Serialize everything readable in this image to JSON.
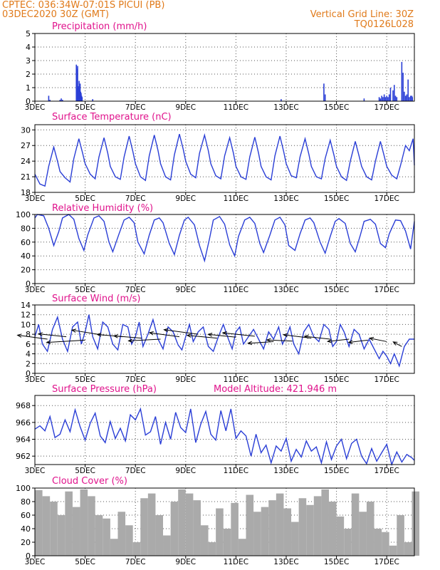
{
  "header": {
    "line1_left": "CPTEC:   036:34W-07:01S   PICUI (PB)",
    "line2_left": "03DEC2020 30Z (GMT)",
    "line1_right": "Vertical Grid Line: 30Z",
    "line2_right": "TQ0126L028",
    "text_color": "#e07a1a"
  },
  "colors": {
    "title": "#e0138c",
    "line": "#2a3ed6",
    "bar": "#2a3ed6",
    "cloud": "#aaaaaa",
    "axis": "#000000",
    "grid": "#555555"
  },
  "x_ticks": [
    "3DEC",
    "5DEC",
    "7DEC",
    "9DEC",
    "11DEC",
    "13DEC",
    "15DEC",
    "17DEC"
  ],
  "x_range_days": [
    3,
    18.1
  ],
  "chart_data": [
    {
      "id": "precip",
      "type": "bar",
      "title": "Precipitation (mm/h)",
      "ylim": [
        0,
        5
      ],
      "yticks": [
        0,
        1,
        2,
        3,
        4,
        5
      ],
      "grid": true,
      "x": [
        3.55,
        3.6,
        4.0,
        4.05,
        4.1,
        4.65,
        4.68,
        4.7,
        4.72,
        4.74,
        4.76,
        4.78,
        4.8,
        4.82,
        4.84,
        4.86,
        4.88,
        5.3,
        12.8,
        14.5,
        14.55,
        16.1,
        16.7,
        16.75,
        16.8,
        16.85,
        16.9,
        16.95,
        17.0,
        17.05,
        17.1,
        17.15,
        17.25,
        17.3,
        17.35,
        17.4,
        17.6,
        17.65,
        17.7,
        17.75,
        17.8,
        17.85,
        17.9,
        17.95,
        18.0,
        18.02
      ],
      "values": [
        0.4,
        0.1,
        0.1,
        0.2,
        0.1,
        2.7,
        2.4,
        2.6,
        1.1,
        1.0,
        1.5,
        0.8,
        1.3,
        0.7,
        0.6,
        0.4,
        0.3,
        0.15,
        0.15,
        1.3,
        0.5,
        0.2,
        0.3,
        0.2,
        0.4,
        0.3,
        0.5,
        0.3,
        0.4,
        0.3,
        0.5,
        1.0,
        0.8,
        1.2,
        0.4,
        0.3,
        2.9,
        2.1,
        0.7,
        0.4,
        0.5,
        1.6,
        0.3,
        0.4,
        0.4,
        0.3
      ]
    },
    {
      "id": "temp",
      "type": "line",
      "title": "Surface Temperature (nC)",
      "ylim": [
        18,
        31
      ],
      "yticks": [
        18,
        21,
        24,
        27,
        30
      ],
      "grid": true,
      "x": [
        3.0,
        3.2,
        3.4,
        3.55,
        3.75,
        3.9,
        4.0,
        4.2,
        4.4,
        4.55,
        4.75,
        4.9,
        5.0,
        5.2,
        5.4,
        5.55,
        5.75,
        5.9,
        6.0,
        6.2,
        6.4,
        6.55,
        6.75,
        6.9,
        7.0,
        7.2,
        7.4,
        7.55,
        7.75,
        7.9,
        8.0,
        8.2,
        8.4,
        8.55,
        8.75,
        8.9,
        9.0,
        9.2,
        9.4,
        9.55,
        9.75,
        9.9,
        10.0,
        10.2,
        10.4,
        10.55,
        10.75,
        10.9,
        11.0,
        11.2,
        11.4,
        11.55,
        11.75,
        11.9,
        12.0,
        12.2,
        12.4,
        12.55,
        12.75,
        12.9,
        13.0,
        13.2,
        13.4,
        13.55,
        13.75,
        13.9,
        14.0,
        14.2,
        14.4,
        14.55,
        14.75,
        14.9,
        15.0,
        15.2,
        15.4,
        15.55,
        15.75,
        15.9,
        16.0,
        16.2,
        16.4,
        16.55,
        16.75,
        16.9,
        17.0,
        17.2,
        17.4,
        17.55,
        17.75,
        17.9,
        18.05,
        18.1
      ],
      "values": [
        21.5,
        19.6,
        19.2,
        23.0,
        26.7,
        24.0,
        22.0,
        20.8,
        20.0,
        24.5,
        28.3,
        25.5,
        23.5,
        21.5,
        20.6,
        24.8,
        28.5,
        25.5,
        23.0,
        21.0,
        20.5,
        24.8,
        28.8,
        25.8,
        23.5,
        21.0,
        20.3,
        25.0,
        29.0,
        26.0,
        23.5,
        21.0,
        20.4,
        25.2,
        29.2,
        26.3,
        24.0,
        21.5,
        20.8,
        25.5,
        29.0,
        26.0,
        23.5,
        21.2,
        20.6,
        25.0,
        28.5,
        25.5,
        23.0,
        21.0,
        20.5,
        24.8,
        28.6,
        25.5,
        23.0,
        21.0,
        20.4,
        25.0,
        28.8,
        25.8,
        23.5,
        21.2,
        20.8,
        24.8,
        28.3,
        25.4,
        23.0,
        21.0,
        20.6,
        24.5,
        28.0,
        25.2,
        23.0,
        21.0,
        20.3,
        24.0,
        27.8,
        25.0,
        23.0,
        21.0,
        20.4,
        24.0,
        27.8,
        25.0,
        23.0,
        21.3,
        20.6,
        23.2,
        27.0,
        26.0,
        28.3,
        23.2
      ]
    },
    {
      "id": "rh",
      "type": "line",
      "title": "Relative Humidity (%)",
      "ylim": [
        0,
        100
      ],
      "yticks": [
        0,
        20,
        40,
        60,
        80,
        100
      ],
      "grid": true,
      "x": [
        3.0,
        3.1,
        3.35,
        3.55,
        3.75,
        3.95,
        4.1,
        4.35,
        4.55,
        4.75,
        4.95,
        5.1,
        5.35,
        5.55,
        5.75,
        5.95,
        6.1,
        6.35,
        6.55,
        6.75,
        6.95,
        7.1,
        7.35,
        7.55,
        7.75,
        7.95,
        8.1,
        8.35,
        8.55,
        8.75,
        8.95,
        9.1,
        9.35,
        9.55,
        9.75,
        9.95,
        10.1,
        10.35,
        10.55,
        10.75,
        10.95,
        11.1,
        11.35,
        11.55,
        11.75,
        11.95,
        12.1,
        12.35,
        12.55,
        12.75,
        12.95,
        13.1,
        13.35,
        13.55,
        13.75,
        13.95,
        14.1,
        14.35,
        14.55,
        14.75,
        14.95,
        15.1,
        15.35,
        15.55,
        15.75,
        15.95,
        16.1,
        16.35,
        16.55,
        16.75,
        16.95,
        17.1,
        17.35,
        17.55,
        17.75,
        17.95,
        18.1
      ],
      "values": [
        95,
        100,
        98,
        80,
        55,
        75,
        95,
        100,
        93,
        65,
        48,
        70,
        95,
        98,
        90,
        60,
        46,
        72,
        92,
        96,
        88,
        60,
        43,
        70,
        92,
        95,
        88,
        58,
        42,
        70,
        92,
        96,
        85,
        55,
        33,
        65,
        92,
        97,
        86,
        56,
        40,
        68,
        92,
        96,
        87,
        58,
        45,
        70,
        92,
        96,
        85,
        55,
        48,
        72,
        92,
        95,
        88,
        60,
        44,
        68,
        90,
        94,
        87,
        58,
        46,
        70,
        90,
        93,
        86,
        58,
        52,
        72,
        92,
        91,
        76,
        50,
        90
      ]
    },
    {
      "id": "wind",
      "type": "line",
      "title": "Surface Wind (m/s)",
      "ylim": [
        0,
        14
      ],
      "yticks": [
        0,
        2,
        4,
        6,
        8,
        10,
        12,
        14
      ],
      "grid": true,
      "x": [
        3.0,
        3.15,
        3.3,
        3.5,
        3.7,
        3.9,
        4.1,
        4.3,
        4.5,
        4.7,
        4.85,
        5.0,
        5.15,
        5.3,
        5.5,
        5.7,
        5.9,
        6.1,
        6.3,
        6.5,
        6.7,
        6.85,
        7.0,
        7.15,
        7.3,
        7.5,
        7.7,
        7.9,
        8.1,
        8.3,
        8.5,
        8.7,
        8.85,
        9.0,
        9.15,
        9.3,
        9.5,
        9.7,
        9.9,
        10.1,
        10.3,
        10.5,
        10.7,
        10.85,
        11.0,
        11.15,
        11.3,
        11.5,
        11.7,
        11.9,
        12.1,
        12.3,
        12.5,
        12.7,
        12.85,
        13.0,
        13.15,
        13.3,
        13.5,
        13.7,
        13.9,
        14.1,
        14.3,
        14.5,
        14.7,
        14.85,
        15.0,
        15.15,
        15.3,
        15.5,
        15.7,
        15.9,
        16.1,
        16.3,
        16.5,
        16.7,
        16.85,
        17.0,
        17.15,
        17.3,
        17.5,
        17.7,
        17.9,
        18.1
      ],
      "values": [
        7.5,
        10.0,
        6.0,
        4.5,
        9.0,
        11.5,
        7.0,
        4.5,
        9.5,
        10.5,
        6.0,
        8.5,
        12.0,
        7.5,
        5.0,
        10.5,
        9.5,
        6.0,
        4.8,
        10.0,
        9.5,
        6.0,
        7.5,
        10.5,
        5.5,
        8.0,
        11.0,
        7.0,
        5.0,
        9.5,
        8.5,
        5.8,
        4.8,
        7.5,
        10.0,
        6.5,
        8.5,
        9.5,
        5.5,
        4.5,
        7.5,
        10.0,
        7.0,
        5.0,
        8.5,
        9.5,
        6.0,
        7.5,
        9.0,
        7.0,
        5.0,
        8.5,
        7.0,
        9.5,
        6.0,
        7.5,
        9.5,
        6.0,
        4.0,
        8.5,
        10.0,
        7.5,
        6.5,
        10.0,
        9.0,
        5.5,
        6.5,
        10.0,
        8.5,
        5.5,
        9.0,
        8.0,
        5.0,
        7.0,
        5.0,
        3.0,
        4.5,
        3.5,
        2.0,
        4.0,
        1.5,
        5.5,
        7.0,
        7.0
      ],
      "vectors": {
        "x": [
          3.5,
          4.25,
          5.0,
          5.75,
          6.5,
          7.25,
          8.0,
          8.75,
          9.5,
          10.25,
          11.0,
          11.75,
          12.5,
          13.25,
          14.0,
          14.75,
          15.5,
          16.25,
          17.0,
          17.6
        ],
        "y": [
          7.0,
          7.5,
          6.8,
          7.8,
          7.5,
          7.2,
          7.0,
          7.5,
          8.0,
          7.2,
          7.4,
          7.6,
          6.5,
          6.6,
          7.2,
          7.0,
          7.0,
          6.8,
          6.5,
          5.5
        ],
        "u": [
          -14,
          -13,
          -18,
          -15,
          -12,
          -13,
          -15,
          -14,
          -16,
          -14,
          -13,
          -15,
          -12,
          -12,
          -13,
          -12,
          -10,
          -9,
          -8,
          -4
        ],
        "v": [
          7,
          5,
          -4,
          9,
          4,
          4,
          -3,
          7,
          8,
          5,
          5,
          6,
          -3,
          2,
          6,
          5,
          -4,
          -4,
          6,
          8
        ]
      }
    },
    {
      "id": "pres",
      "type": "line",
      "title": "Surface Pressure (hPa)",
      "subtitle": "Model Altitude: 421.946 m",
      "ylim": [
        961.0,
        969.2
      ],
      "yticks": [
        962,
        964,
        966,
        968
      ],
      "grid": true,
      "x": [
        3.0,
        3.2,
        3.4,
        3.6,
        3.8,
        4.0,
        4.2,
        4.4,
        4.6,
        4.8,
        5.0,
        5.2,
        5.4,
        5.6,
        5.8,
        6.0,
        6.2,
        6.4,
        6.6,
        6.8,
        7.0,
        7.2,
        7.4,
        7.6,
        7.8,
        8.0,
        8.2,
        8.4,
        8.6,
        8.8,
        9.0,
        9.2,
        9.4,
        9.6,
        9.8,
        10.0,
        10.2,
        10.4,
        10.6,
        10.8,
        11.0,
        11.2,
        11.4,
        11.6,
        11.8,
        12.0,
        12.2,
        12.4,
        12.6,
        12.8,
        13.0,
        13.2,
        13.4,
        13.6,
        13.8,
        14.0,
        14.2,
        14.4,
        14.6,
        14.8,
        15.0,
        15.2,
        15.4,
        15.6,
        15.8,
        16.0,
        16.2,
        16.4,
        16.6,
        16.8,
        17.0,
        17.2,
        17.4,
        17.6,
        17.8,
        18.0,
        18.1
      ],
      "values": [
        965.2,
        965.6,
        965.0,
        966.7,
        964.2,
        964.6,
        966.3,
        964.9,
        967.5,
        965.5,
        963.9,
        965.9,
        967.1,
        964.4,
        963.6,
        966.1,
        964.1,
        965.3,
        963.8,
        966.9,
        966.3,
        967.6,
        964.5,
        964.9,
        966.7,
        963.4,
        966.0,
        964.0,
        967.2,
        965.4,
        964.8,
        967.6,
        963.6,
        965.8,
        967.3,
        964.6,
        963.9,
        967.4,
        965.0,
        967.6,
        964.1,
        965.0,
        964.4,
        962.0,
        964.6,
        962.4,
        963.3,
        961.2,
        963.2,
        962.6,
        964.1,
        961.4,
        962.8,
        961.9,
        963.8,
        962.6,
        963.1,
        961.2,
        963.7,
        961.6,
        963.2,
        964.0,
        961.7,
        963.5,
        964.0,
        962.0,
        961.1,
        962.9,
        961.4,
        962.4,
        963.4,
        961.0,
        962.5,
        961.3,
        962.2,
        961.8,
        961.5
      ]
    },
    {
      "id": "cloud",
      "type": "bar",
      "title": "Cloud Cover (%)",
      "ylim": [
        0,
        100
      ],
      "yticks": [
        0,
        20,
        40,
        60,
        80,
        100
      ],
      "grid": true,
      "x": [
        3.0,
        3.3,
        3.6,
        3.9,
        4.2,
        4.5,
        4.8,
        5.1,
        5.4,
        5.7,
        6.0,
        6.3,
        6.6,
        6.9,
        7.2,
        7.5,
        7.8,
        8.1,
        8.4,
        8.7,
        9.0,
        9.3,
        9.6,
        9.9,
        10.2,
        10.5,
        10.8,
        11.1,
        11.4,
        11.7,
        12.0,
        12.3,
        12.6,
        12.9,
        13.2,
        13.5,
        13.8,
        14.1,
        14.4,
        14.7,
        15.0,
        15.3,
        15.6,
        15.9,
        16.2,
        16.5,
        16.8,
        17.1,
        17.4,
        17.7,
        18.0
      ],
      "values": [
        97,
        88,
        80,
        60,
        95,
        72,
        98,
        88,
        60,
        55,
        25,
        65,
        45,
        20,
        85,
        92,
        60,
        30,
        80,
        98,
        92,
        82,
        45,
        20,
        70,
        40,
        78,
        25,
        90,
        65,
        72,
        82,
        92,
        70,
        50,
        85,
        75,
        88,
        98,
        80,
        58,
        40,
        92,
        65,
        80,
        40,
        35,
        15,
        60,
        20,
        95
      ]
    }
  ]
}
